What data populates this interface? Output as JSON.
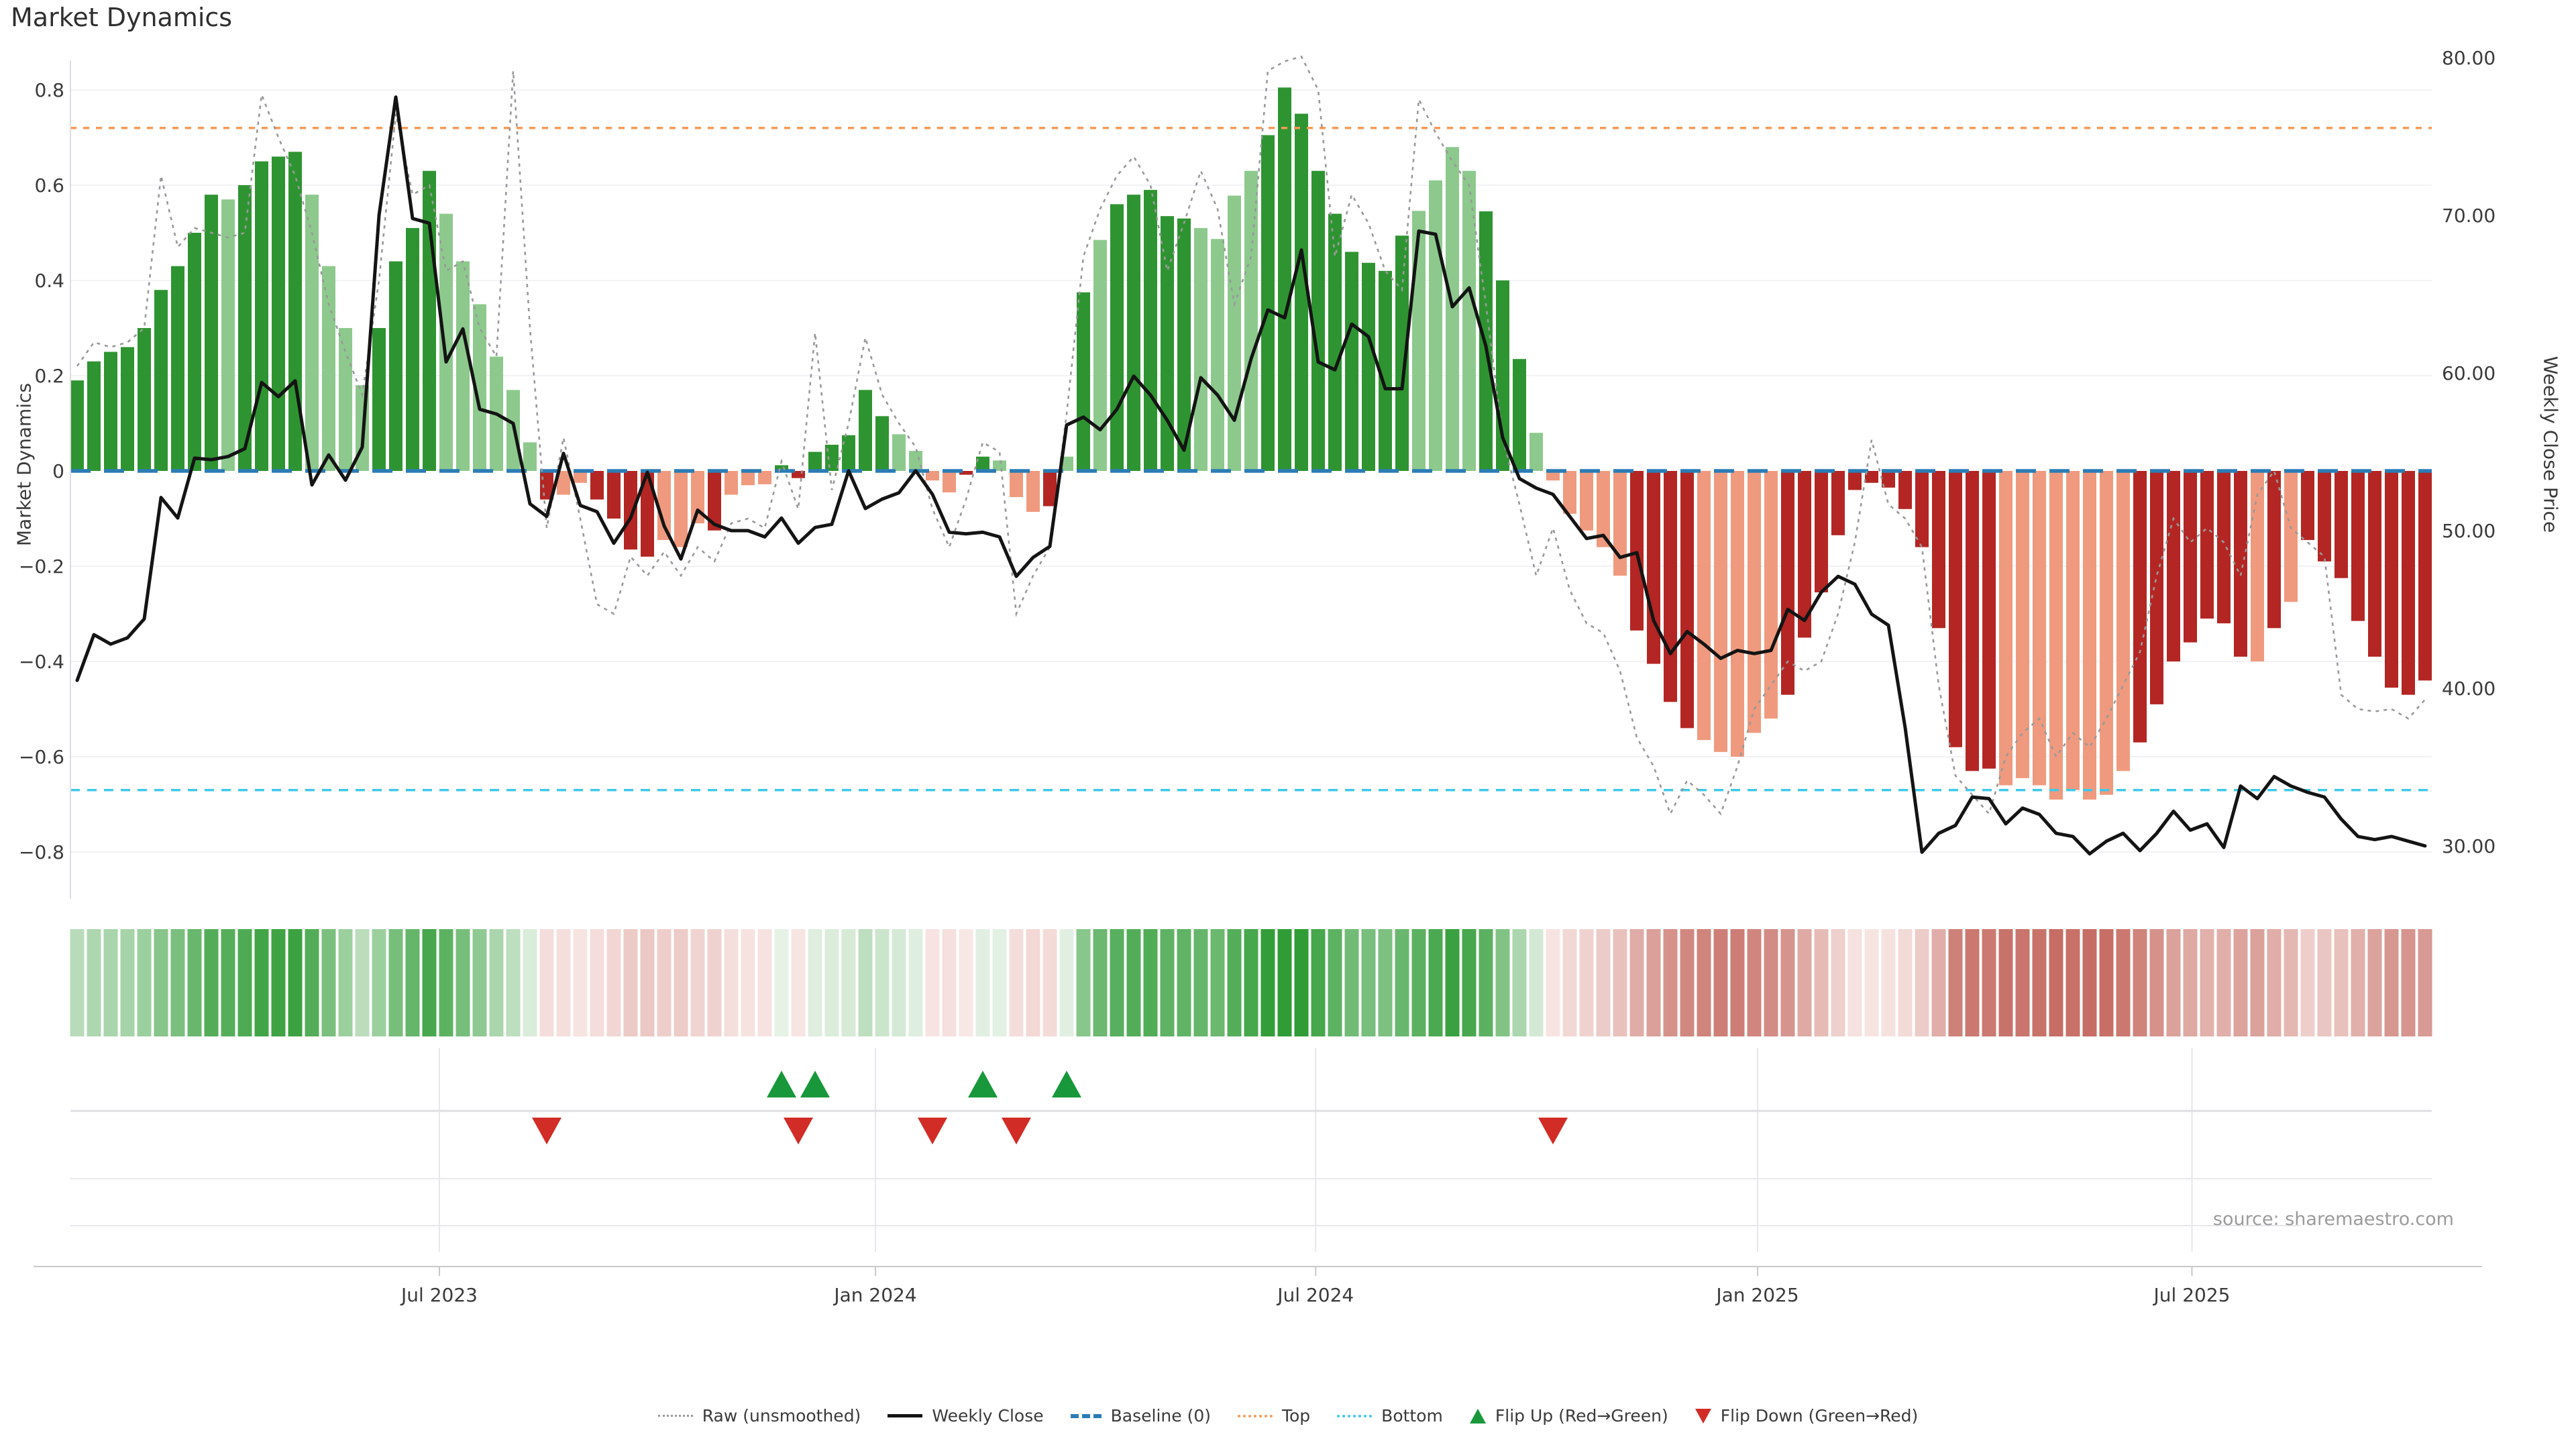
{
  "title": "Market Dynamics",
  "source": "source: sharemaestro.com",
  "axes": {
    "left_label": "Market Dynamics",
    "right_label": "Weekly Close Price",
    "left_ticks": [
      {
        "label": "0.8",
        "v": 0.8
      },
      {
        "label": "0.6",
        "v": 0.6
      },
      {
        "label": "0.4",
        "v": 0.4
      },
      {
        "label": "0.2",
        "v": 0.2
      },
      {
        "label": "0",
        "v": 0
      },
      {
        "label": "−0.2",
        "v": -0.2
      },
      {
        "label": "−0.4",
        "v": -0.4
      },
      {
        "label": "−0.6",
        "v": -0.6
      },
      {
        "label": "−0.8",
        "v": -0.8
      }
    ],
    "right_ticks": [
      {
        "label": "80.00",
        "p": 80
      },
      {
        "label": "70.00",
        "p": 70
      },
      {
        "label": "60.00",
        "p": 60
      },
      {
        "label": "50.00",
        "p": 50
      },
      {
        "label": "40.00",
        "p": 40
      },
      {
        "label": "30.00",
        "p": 30
      }
    ],
    "x_ticks": [
      {
        "label": "Jul 2023",
        "week": 22.6
      },
      {
        "label": "Jan 2024",
        "week": 48.6
      },
      {
        "label": "Jul 2024",
        "week": 74.85
      },
      {
        "label": "Jan 2025",
        "week": 101.2
      },
      {
        "label": "Jul 2025",
        "week": 127.1
      }
    ]
  },
  "legend": {
    "items": [
      {
        "label": "Raw (unsmoothed)",
        "type": "raw"
      },
      {
        "label": "Weekly Close",
        "type": "close"
      },
      {
        "label": "Baseline (0)",
        "type": "baseline"
      },
      {
        "label": "Top",
        "type": "top"
      },
      {
        "label": "Bottom",
        "type": "bottom"
      },
      {
        "label": "Flip Up (Red→Green)",
        "type": "flip-up"
      },
      {
        "label": "Flip Down (Green→Red)",
        "type": "flip-down"
      }
    ]
  },
  "colors": {
    "bar_green_dark": "#2e9431",
    "bar_green_light": "#8dc98d",
    "bar_red_dark": "#b32623",
    "bar_red_light": "#ef9a7e",
    "heat_green_dark": "#2f9c35",
    "heat_green_light": "#e9f3e9",
    "heat_pink_dark": "#c4685f",
    "heat_pink_light": "#f8e8e6",
    "raw_line": "#999999",
    "close_line": "#141414",
    "baseline": "#2b7cb5",
    "top_line": "#f59a57",
    "bottom_line": "#3fc8e9",
    "grid": "#f2f2f6",
    "panel_line": "#e7e7ec",
    "separator": "#dfdfe3",
    "axis_line": "#c9c9c9",
    "spine": "#dcdce2",
    "text": "#3a3a3a",
    "marker_up": "#18983b",
    "marker_down": "#d22c26"
  },
  "chart_data": {
    "type": "bar+line",
    "weeks": 141,
    "ylim": [
      -0.86,
      0.86
    ],
    "price_ylim": [
      27.5,
      80.2
    ],
    "baseline": 0,
    "top": 0.72,
    "bottom": -0.67,
    "grid": "horizontal-only",
    "legend_position": "bottom-center",
    "series": [
      {
        "name": "Market Dynamics (weekly bars, left axis)",
        "values": [
          0.19,
          0.23,
          0.25,
          0.26,
          0.3,
          0.38,
          0.43,
          0.5,
          0.58,
          0.57,
          0.6,
          0.65,
          0.66,
          0.67,
          0.58,
          0.43,
          0.3,
          0.18,
          0.3,
          0.44,
          0.51,
          0.63,
          0.54,
          0.44,
          0.35,
          0.24,
          0.17,
          0.06,
          -0.06,
          -0.05,
          -0.025,
          -0.06,
          -0.1,
          -0.165,
          -0.18,
          -0.145,
          -0.16,
          -0.11,
          -0.125,
          -0.05,
          -0.03,
          -0.028,
          0.012,
          -0.015,
          0.04,
          0.055,
          0.075,
          0.17,
          0.115,
          0.077,
          0.042,
          -0.02,
          -0.045,
          -0.008,
          0.03,
          0.022,
          -0.055,
          -0.086,
          -0.074,
          0.03,
          0.375,
          0.485,
          0.56,
          0.58,
          0.59,
          0.535,
          0.53,
          0.51,
          0.487,
          0.578,
          0.63,
          0.705,
          0.805,
          0.75,
          0.63,
          0.54,
          0.46,
          0.437,
          0.42,
          0.494,
          0.546,
          0.61,
          0.68,
          0.63,
          0.545,
          0.4,
          0.235,
          0.08,
          -0.02,
          -0.09,
          -0.125,
          -0.16,
          -0.22,
          -0.335,
          -0.405,
          -0.485,
          -0.54,
          -0.565,
          -0.59,
          -0.6,
          -0.55,
          -0.52,
          -0.47,
          -0.35,
          -0.255,
          -0.135,
          -0.04,
          -0.025,
          -0.035,
          -0.08,
          -0.16,
          -0.33,
          -0.58,
          -0.63,
          -0.625,
          -0.66,
          -0.645,
          -0.66,
          -0.69,
          -0.67,
          -0.69,
          -0.68,
          -0.63,
          -0.57,
          -0.49,
          -0.4,
          -0.36,
          -0.31,
          -0.32,
          -0.39,
          -0.4,
          -0.33,
          -0.275,
          -0.145,
          -0.19,
          -0.225,
          -0.315,
          -0.39,
          -0.455,
          -0.47,
          -0.44
        ],
        "shades": "dddddddddlddddllllddddlllllldllddddllldllldddddddllllddllldldldddddlllldddddddddlllldddllllllddddllllldddddddddddddlllllllldddddddldldd"
      },
      {
        "name": "Weekly Close (right axis)",
        "values": [
          40.5,
          43.4,
          42.8,
          43.2,
          44.4,
          52.1,
          50.8,
          54.6,
          54.5,
          54.7,
          55.2,
          59.4,
          58.5,
          59.5,
          52.9,
          54.8,
          53.2,
          55.3,
          70.0,
          77.5,
          69.8,
          69.5,
          60.7,
          62.8,
          57.7,
          57.4,
          56.8,
          51.7,
          50.9,
          54.9,
          51.6,
          51.2,
          49.2,
          50.8,
          53.7,
          50.3,
          48.2,
          51.3,
          50.4,
          50.0,
          50.0,
          49.6,
          50.8,
          49.2,
          50.2,
          50.4,
          53.8,
          51.4,
          52.0,
          52.4,
          53.8,
          52.3,
          49.9,
          49.8,
          49.9,
          49.6,
          47.1,
          48.3,
          49.0,
          56.7,
          57.2,
          56.4,
          57.7,
          59.8,
          58.6,
          57.0,
          55.1,
          59.7,
          58.6,
          57.0,
          60.9,
          64.0,
          63.5,
          67.8,
          60.7,
          60.2,
          63.1,
          62.3,
          59.0,
          59.0,
          69.0,
          68.8,
          64.2,
          65.4,
          61.7,
          55.9,
          53.3,
          52.7,
          52.3,
          50.9,
          49.5,
          49.7,
          48.3,
          48.6,
          44.3,
          42.2,
          43.6,
          42.8,
          41.9,
          42.4,
          42.2,
          42.4,
          45.0,
          44.3,
          46.1,
          47.1,
          46.6,
          44.7,
          44.0,
          37.5,
          29.6,
          30.8,
          31.3,
          33.1,
          33.0,
          31.4,
          32.4,
          32.0,
          30.8,
          30.6,
          29.5,
          30.3,
          30.8,
          29.7,
          30.8,
          32.2,
          31.0,
          31.4,
          29.9,
          33.8,
          33.0,
          34.4,
          33.8,
          33.4,
          33.1,
          31.7,
          30.6,
          30.4,
          30.6,
          30.3,
          30.0
        ]
      },
      {
        "name": "Raw (unsmoothed, left axis)",
        "values": [
          0.22,
          0.27,
          0.26,
          0.27,
          0.3,
          0.62,
          0.47,
          0.51,
          0.5,
          0.49,
          0.5,
          0.79,
          0.7,
          0.62,
          0.5,
          0.35,
          0.25,
          0.16,
          0.4,
          0.75,
          0.58,
          0.6,
          0.42,
          0.44,
          0.3,
          0.24,
          0.84,
          0.3,
          -0.12,
          0.07,
          -0.1,
          -0.28,
          -0.3,
          -0.18,
          -0.22,
          -0.17,
          -0.22,
          -0.16,
          -0.19,
          -0.11,
          -0.1,
          -0.12,
          0.02,
          -0.08,
          0.29,
          -0.04,
          0.1,
          0.28,
          0.16,
          0.1,
          0.05,
          -0.08,
          -0.16,
          -0.06,
          0.06,
          0.04,
          -0.3,
          -0.22,
          -0.16,
          0.12,
          0.45,
          0.55,
          0.62,
          0.66,
          0.6,
          0.42,
          0.52,
          0.63,
          0.55,
          0.35,
          0.45,
          0.84,
          0.86,
          0.87,
          0.8,
          0.45,
          0.58,
          0.52,
          0.42,
          0.38,
          0.78,
          0.71,
          0.65,
          0.6,
          0.35,
          0.07,
          -0.07,
          -0.22,
          -0.12,
          -0.25,
          -0.32,
          -0.34,
          -0.42,
          -0.56,
          -0.62,
          -0.72,
          -0.65,
          -0.68,
          -0.72,
          -0.62,
          -0.5,
          -0.45,
          -0.4,
          -0.42,
          -0.4,
          -0.3,
          -0.15,
          0.065,
          -0.07,
          -0.1,
          -0.16,
          -0.45,
          -0.64,
          -0.68,
          -0.72,
          -0.6,
          -0.55,
          -0.52,
          -0.6,
          -0.55,
          -0.58,
          -0.52,
          -0.45,
          -0.38,
          -0.22,
          -0.1,
          -0.15,
          -0.12,
          -0.15,
          -0.22,
          -0.05,
          0.0,
          -0.12,
          -0.15,
          -0.18,
          -0.47,
          -0.5,
          -0.505,
          -0.5,
          -0.52,
          -0.48
        ]
      }
    ],
    "flip_up_weeks": [
      43,
      45,
      55,
      60
    ],
    "flip_down_weeks": [
      29,
      44,
      52,
      57,
      89
    ],
    "heatmap": "one cell per week; green shades for positive dynamics, pink/rose shades for negative, intensity proportional to |value|"
  }
}
